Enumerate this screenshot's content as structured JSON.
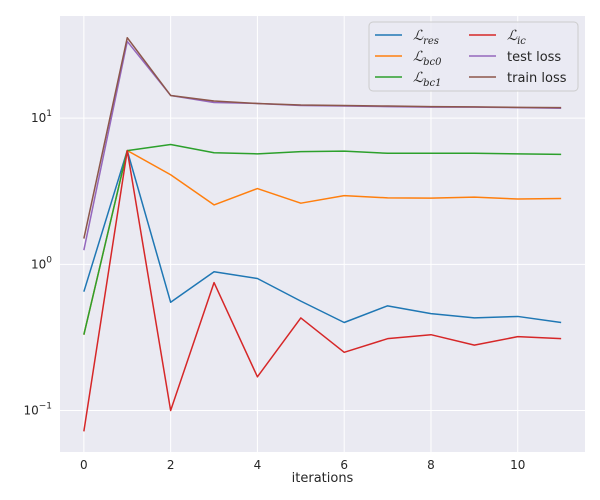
{
  "chart_data": {
    "type": "line",
    "xlabel": "iterations",
    "ylabel": "",
    "yscale": "log",
    "xlim": [
      -0.55,
      11.55
    ],
    "ylim": [
      0.052,
      50
    ],
    "xticks": [
      0,
      2,
      4,
      6,
      8,
      10
    ],
    "yticks": [
      {
        "value": 0.1,
        "base": "10",
        "exp": "−1"
      },
      {
        "value": 1,
        "base": "10",
        "exp": "0"
      },
      {
        "value": 10,
        "base": "10",
        "exp": "1"
      }
    ],
    "grid": true,
    "legend_position": "top-right",
    "legend_columns": 2,
    "x": [
      0,
      1,
      2,
      3,
      4,
      5,
      6,
      7,
      8,
      9,
      10,
      11
    ],
    "series": [
      {
        "name": "ℒ",
        "sub": "res",
        "math": true,
        "color": "#1f77b4",
        "values": [
          0.65,
          6.0,
          0.55,
          0.89,
          0.8,
          0.56,
          0.4,
          0.52,
          0.46,
          0.43,
          0.44,
          0.4
        ]
      },
      {
        "name": "ℒ",
        "sub": "bc0",
        "math": true,
        "color": "#ff7f0e",
        "values": [
          0.33,
          6.0,
          4.1,
          2.55,
          3.3,
          2.62,
          2.95,
          2.85,
          2.84,
          2.88,
          2.8,
          2.82
        ]
      },
      {
        "name": "ℒ",
        "sub": "bc1",
        "math": true,
        "color": "#2ca02c",
        "values": [
          0.33,
          6.0,
          6.6,
          5.8,
          5.7,
          5.9,
          5.95,
          5.75,
          5.75,
          5.75,
          5.7,
          5.65
        ]
      },
      {
        "name": "ℒ",
        "sub": "ic",
        "math": true,
        "color": "#d62728",
        "values": [
          0.072,
          6.0,
          0.1,
          0.75,
          0.17,
          0.43,
          0.25,
          0.31,
          0.33,
          0.28,
          0.32,
          0.31
        ]
      },
      {
        "name": "test loss",
        "math": false,
        "color": "#9467bd",
        "values": [
          1.25,
          33.5,
          14.3,
          12.8,
          12.6,
          12.2,
          12.1,
          12.0,
          11.9,
          11.9,
          11.8,
          11.7
        ]
      },
      {
        "name": "train loss",
        "math": false,
        "color": "#8c564b",
        "values": [
          1.5,
          35.5,
          14.3,
          13.1,
          12.6,
          12.3,
          12.2,
          12.1,
          12.0,
          11.95,
          11.85,
          11.8
        ]
      }
    ]
  }
}
